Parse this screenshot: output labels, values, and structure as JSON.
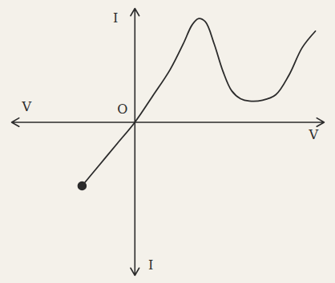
{
  "chart_data": {
    "type": "line",
    "x": [
      -6,
      -4,
      -2,
      0,
      2,
      4,
      5.5,
      6.5,
      7.2,
      8,
      9,
      10,
      11,
      12,
      13,
      14.5,
      16,
      17.5,
      19,
      20.5
    ],
    "values": [
      -8.1,
      -5.4,
      -2.7,
      0,
      3.3,
      6.7,
      10,
      12.4,
      13.2,
      12.8,
      10,
      6.5,
      4,
      3,
      2.7,
      2.8,
      3.5,
      6,
      9.5,
      11.6
    ],
    "xlim": [
      -14,
      21.5
    ],
    "ylim": [
      -19.5,
      14.5
    ],
    "tick_labels": false,
    "grid": false,
    "color": "#2b2b2b",
    "marker": "start",
    "line_style": "solid",
    "annotations": [
      {
        "text": "I",
        "x": -2.2,
        "y": 13.2
      },
      {
        "text": "I",
        "x": 1.8,
        "y": -18.2
      },
      {
        "text": "V",
        "x": -12.3,
        "y": 1.9
      },
      {
        "text": "V",
        "x": 20.3,
        "y": -1.6
      },
      {
        "text": "O",
        "x": -1.4,
        "y": 1.6
      }
    ]
  }
}
